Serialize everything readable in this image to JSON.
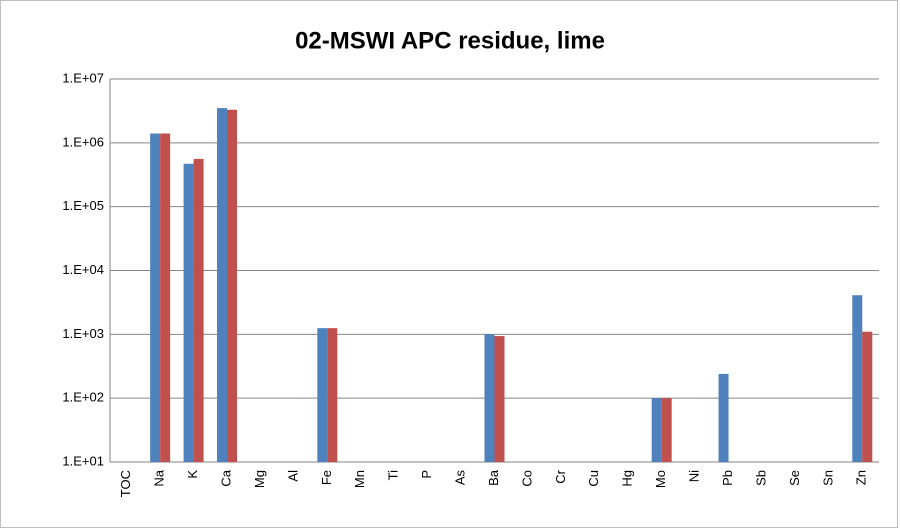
{
  "chart_data": {
    "type": "bar",
    "title": "02-MSWI APC residue, lime",
    "categories": [
      "TOC",
      "Na",
      "K",
      "Ca",
      "Mg",
      "Al",
      "Fe",
      "Mn",
      "Ti",
      "P",
      "As",
      "Ba",
      "Co",
      "Cr",
      "Cu",
      "Hg",
      "Mo",
      "Ni",
      "Pb",
      "Sb",
      "Se",
      "Sn",
      "Zn"
    ],
    "series": [
      {
        "color": "#4f81bd",
        "values": [
          null,
          1400000,
          470000,
          3500000,
          null,
          null,
          1250,
          null,
          null,
          null,
          null,
          1000,
          null,
          null,
          null,
          null,
          100,
          null,
          240,
          null,
          null,
          null,
          4100
        ]
      },
      {
        "color": "#c0504d",
        "values": [
          null,
          1400000,
          560000,
          3300000,
          null,
          null,
          1250,
          null,
          null,
          null,
          null,
          940,
          null,
          null,
          null,
          null,
          100,
          null,
          null,
          null,
          null,
          null,
          1100
        ]
      }
    ],
    "log_scale": true,
    "ylim": [
      10,
      10000000
    ],
    "yticks": [
      {
        "value": 10,
        "label": "1.E+01"
      },
      {
        "value": 100,
        "label": "1.E+02"
      },
      {
        "value": 1000,
        "label": "1.E+03"
      },
      {
        "value": 10000,
        "label": "1.E+04"
      },
      {
        "value": 100000,
        "label": "1.E+05"
      },
      {
        "value": 1000000,
        "label": "1.E+06"
      },
      {
        "value": 10000000,
        "label": "1.E+07"
      }
    ],
    "grid": true
  }
}
